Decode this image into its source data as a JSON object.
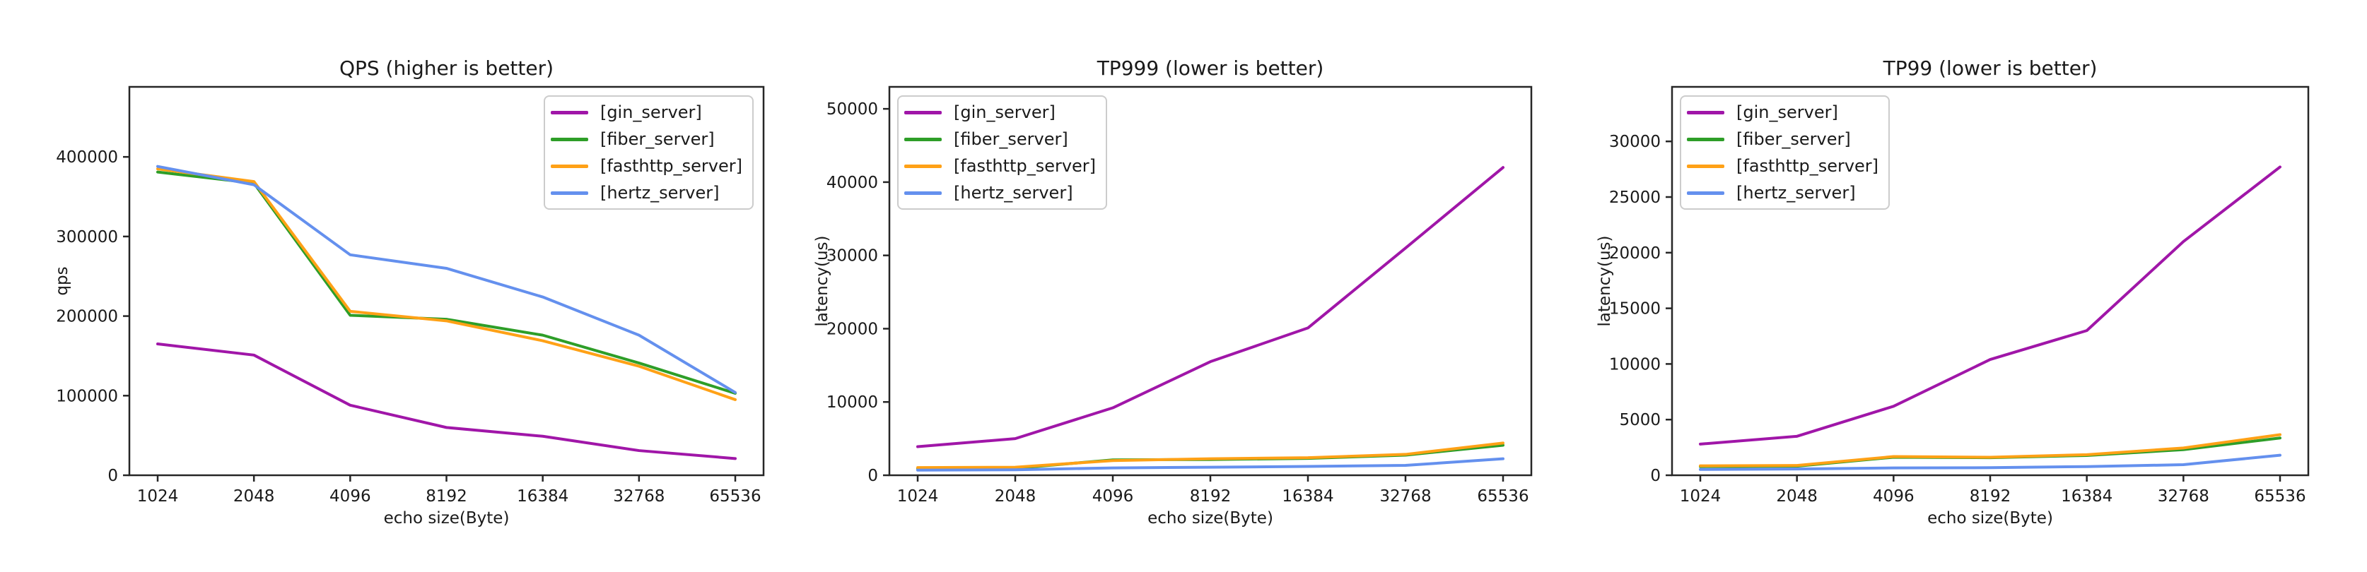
{
  "figure": {
    "background": "#ffffff",
    "text_color": "#1a1a1a",
    "spine_color": "#262626"
  },
  "legend": {
    "entries": [
      {
        "label": "[gin_server]",
        "color": "#A016A8"
      },
      {
        "label": "[fiber_server]",
        "color": "#2E9E28"
      },
      {
        "label": "[fasthttp_server]",
        "color": "#FFA116"
      },
      {
        "label": "[hertz_server]",
        "color": "#6490EE"
      }
    ]
  },
  "chart_data": [
    {
      "type": "line",
      "title": "QPS (higher is better)",
      "xlabel": "echo size(Byte)",
      "ylabel": "qps",
      "x_ticklabels": [
        "1024",
        "2048",
        "4096",
        "8192",
        "16384",
        "32768",
        "65536"
      ],
      "yticks": [
        0,
        100000,
        200000,
        300000,
        400000
      ],
      "ylim": [
        0,
        488000
      ],
      "grid": false,
      "legend_position": "top-right",
      "series": [
        {
          "name": "[gin_server]",
          "color": "#A016A8",
          "values": [
            165000,
            151000,
            88000,
            60000,
            49000,
            31000,
            21000
          ]
        },
        {
          "name": "[fiber_server]",
          "color": "#2E9E28",
          "values": [
            381000,
            367000,
            201000,
            196000,
            176000,
            141000,
            103000
          ]
        },
        {
          "name": "[fasthttp_server]",
          "color": "#FFA116",
          "values": [
            385000,
            369000,
            206000,
            194000,
            169000,
            137000,
            95000
          ]
        },
        {
          "name": "[hertz_server]",
          "color": "#6490EE",
          "values": [
            388000,
            365000,
            277000,
            260000,
            224000,
            176000,
            104000
          ]
        }
      ]
    },
    {
      "type": "line",
      "title": "TP999 (lower is better)",
      "xlabel": "echo size(Byte)",
      "ylabel": "latency(us)",
      "x_ticklabels": [
        "1024",
        "2048",
        "4096",
        "8192",
        "16384",
        "32768",
        "65536"
      ],
      "yticks": [
        0,
        10000,
        20000,
        30000,
        40000,
        50000
      ],
      "ylim": [
        0,
        53000
      ],
      "grid": false,
      "legend_position": "top-left",
      "series": [
        {
          "name": "[gin_server]",
          "color": "#A016A8",
          "values": [
            3900,
            5000,
            9200,
            15500,
            20100,
            31000,
            42000
          ]
        },
        {
          "name": "[fiber_server]",
          "color": "#2E9E28",
          "values": [
            900,
            950,
            2100,
            2150,
            2300,
            2750,
            4100
          ]
        },
        {
          "name": "[fasthttp_server]",
          "color": "#FFA116",
          "values": [
            1050,
            1100,
            2000,
            2250,
            2400,
            2850,
            4400
          ]
        },
        {
          "name": "[hertz_server]",
          "color": "#6490EE",
          "values": [
            700,
            750,
            1000,
            1100,
            1200,
            1350,
            2250
          ]
        }
      ]
    },
    {
      "type": "line",
      "title": "TP99 (lower is better)",
      "xlabel": "echo size(Byte)",
      "ylabel": "latency(us)",
      "x_ticklabels": [
        "1024",
        "2048",
        "4096",
        "8192",
        "16384",
        "32768",
        "65536"
      ],
      "yticks": [
        0,
        5000,
        10000,
        15000,
        20000,
        25000,
        30000
      ],
      "ylim": [
        0,
        34900
      ],
      "grid": false,
      "legend_position": "top-left",
      "series": [
        {
          "name": "[gin_server]",
          "color": "#A016A8",
          "values": [
            2800,
            3500,
            6200,
            10400,
            13000,
            21000,
            27700
          ]
        },
        {
          "name": "[fiber_server]",
          "color": "#2E9E28",
          "values": [
            780,
            820,
            1620,
            1580,
            1780,
            2300,
            3350
          ]
        },
        {
          "name": "[fasthttp_server]",
          "color": "#FFA116",
          "values": [
            850,
            880,
            1680,
            1620,
            1850,
            2450,
            3650
          ]
        },
        {
          "name": "[hertz_server]",
          "color": "#6490EE",
          "values": [
            520,
            560,
            660,
            680,
            780,
            950,
            1800
          ]
        }
      ]
    }
  ]
}
